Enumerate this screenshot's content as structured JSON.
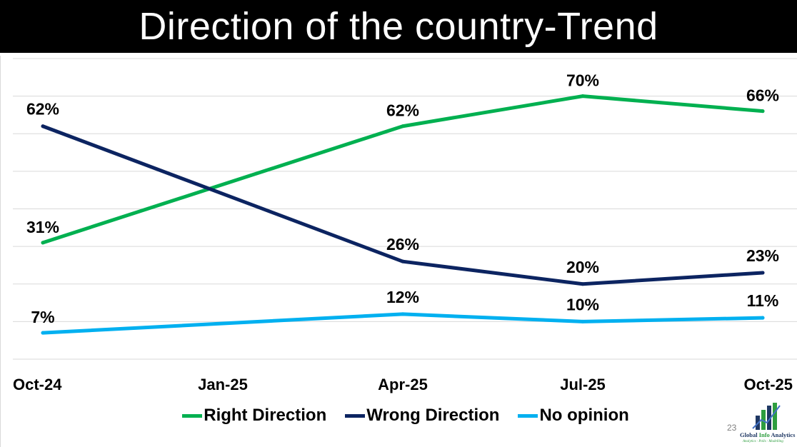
{
  "title": "Direction of the country-Trend",
  "slide_number": "23",
  "logo": {
    "text_part1": "Global ",
    "text_part2": "Info",
    "text_part3": " Analytics",
    "tagline": "Analytics · Polls · Modelling"
  },
  "colors": {
    "right": "#00b050",
    "wrong": "#0c2461",
    "none": "#00b0f0",
    "grid": "#d9d9d9"
  },
  "chart_data": {
    "type": "line",
    "title": "Direction of the country-Trend",
    "categories": [
      "Oct-24",
      "Jan-25",
      "Apr-25",
      "Jul-25",
      "Oct-25"
    ],
    "ylim": [
      0,
      80
    ],
    "grid": true,
    "legend_position": "bottom",
    "series": [
      {
        "name": "Right Direction",
        "color": "#00b050",
        "points": [
          {
            "x": "Oct-24",
            "y": 31
          },
          {
            "x": "Apr-25",
            "y": 62
          },
          {
            "x": "Jul-25",
            "y": 70
          },
          {
            "x": "Oct-25",
            "y": 66
          }
        ],
        "labels": [
          "31%",
          "62%",
          "70%",
          "66%"
        ]
      },
      {
        "name": "Wrong Direction",
        "color": "#0c2461",
        "points": [
          {
            "x": "Oct-24",
            "y": 62
          },
          {
            "x": "Apr-25",
            "y": 26
          },
          {
            "x": "Jul-25",
            "y": 20
          },
          {
            "x": "Oct-25",
            "y": 23
          }
        ],
        "labels": [
          "62%",
          "26%",
          "20%",
          "23%"
        ]
      },
      {
        "name": "No opinion",
        "color": "#00b0f0",
        "points": [
          {
            "x": "Oct-24",
            "y": 7
          },
          {
            "x": "Apr-25",
            "y": 12
          },
          {
            "x": "Jul-25",
            "y": 10
          },
          {
            "x": "Oct-25",
            "y": 11
          }
        ],
        "labels": [
          "7%",
          "12%",
          "10%",
          "11%"
        ]
      }
    ]
  }
}
